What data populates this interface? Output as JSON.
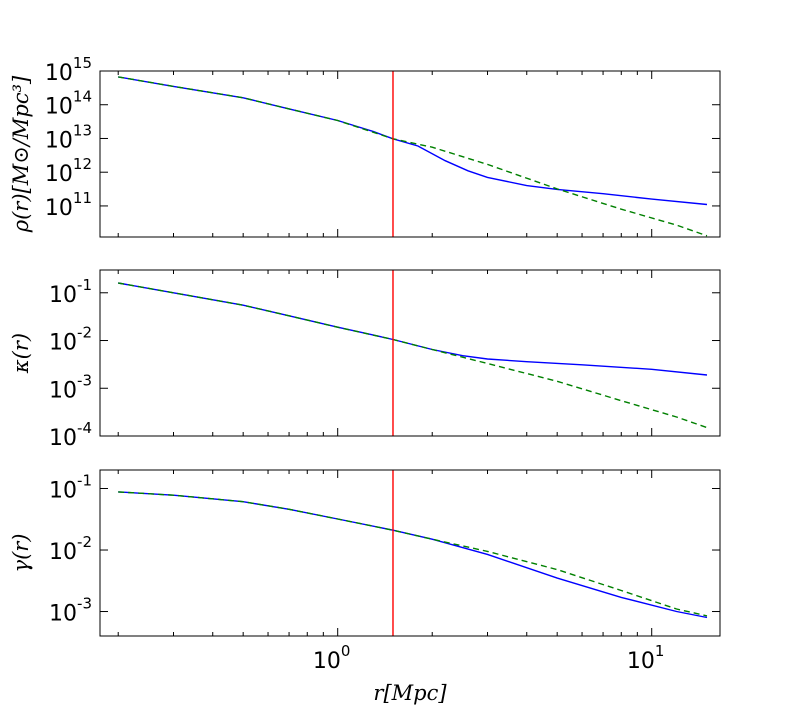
{
  "chart_data": [
    {
      "type": "line",
      "ylabel": "ρ(r)[M⊙/Mpc³]",
      "xscale": "log",
      "yscale": "log",
      "xlim": [
        0.175,
        16.5
      ],
      "ylim": [
        12000000000.0,
        1000000000000000.0
      ],
      "yticks": [
        {
          "base": "10",
          "exp": "15",
          "value": 1000000000000000.0
        },
        {
          "base": "10",
          "exp": "14",
          "value": 100000000000000.0
        },
        {
          "base": "10",
          "exp": "13",
          "value": 10000000000000.0
        },
        {
          "base": "10",
          "exp": "12",
          "value": 1000000000000.0
        },
        {
          "base": "10",
          "exp": "11",
          "value": 100000000000.0
        }
      ],
      "vline_x": 1.5,
      "series": [
        {
          "style": "solid",
          "color": "#0000ff",
          "points": [
            [
              0.2,
              670000000000000.0
            ],
            [
              0.3,
              350000000000000.0
            ],
            [
              0.5,
              160000000000000.0
            ],
            [
              0.7,
              75000000000000.0
            ],
            [
              1.0,
              34000000000000.0
            ],
            [
              1.3,
              16000000000000.0
            ],
            [
              1.5,
              9800000000000.0
            ],
            [
              1.8,
              6000000000000.0
            ],
            [
              2.2,
              2200000000000.0
            ],
            [
              2.6,
              1100000000000.0
            ],
            [
              3.0,
              700000000000.0
            ],
            [
              4.0,
              400000000000.0
            ],
            [
              5.0,
              310000000000.0
            ],
            [
              7.0,
              230000000000.0
            ],
            [
              10.0,
              160000000000.0
            ],
            [
              15.0,
              110000000000.0
            ]
          ]
        },
        {
          "style": "dashed",
          "color": "#008000",
          "points": [
            [
              0.2,
              670000000000000.0
            ],
            [
              0.3,
              350000000000000.0
            ],
            [
              0.5,
              160000000000000.0
            ],
            [
              0.7,
              75000000000000.0
            ],
            [
              1.0,
              34000000000000.0
            ],
            [
              1.5,
              9800000000000.0
            ],
            [
              2.0,
              5500000000000.0
            ],
            [
              3.0,
              1700000000000.0
            ],
            [
              5.0,
              320000000000.0
            ],
            [
              8.0,
              80000000000.0
            ],
            [
              12.0,
              27000000000.0
            ],
            [
              15.0,
              13000000000.0
            ]
          ]
        }
      ]
    },
    {
      "type": "line",
      "ylabel": "κ(r)",
      "xscale": "log",
      "yscale": "log",
      "xlim": [
        0.175,
        16.5
      ],
      "ylim": [
        0.0001,
        0.3
      ],
      "yticks": [
        {
          "base": "10",
          "exp": "-1",
          "value": 0.1
        },
        {
          "base": "10",
          "exp": "-2",
          "value": 0.01
        },
        {
          "base": "10",
          "exp": "-3",
          "value": 0.001
        },
        {
          "base": "10",
          "exp": "-4",
          "value": 0.0001
        }
      ],
      "vline_x": 1.5,
      "series": [
        {
          "style": "solid",
          "color": "#0000ff",
          "points": [
            [
              0.2,
              0.16
            ],
            [
              0.3,
              0.1
            ],
            [
              0.5,
              0.055
            ],
            [
              0.7,
              0.033
            ],
            [
              1.0,
              0.019
            ],
            [
              1.3,
              0.013
            ],
            [
              1.5,
              0.0105
            ],
            [
              2.0,
              0.0065
            ],
            [
              2.5,
              0.0048
            ],
            [
              3.0,
              0.0041
            ],
            [
              4.0,
              0.0036
            ],
            [
              6.0,
              0.0031
            ],
            [
              10.0,
              0.0025
            ],
            [
              15.0,
              0.0019
            ]
          ]
        },
        {
          "style": "dashed",
          "color": "#008000",
          "points": [
            [
              0.2,
              0.16
            ],
            [
              0.3,
              0.1
            ],
            [
              0.5,
              0.055
            ],
            [
              0.7,
              0.033
            ],
            [
              1.0,
              0.019
            ],
            [
              1.5,
              0.0105
            ],
            [
              2.0,
              0.0065
            ],
            [
              3.0,
              0.0033
            ],
            [
              5.0,
              0.0014
            ],
            [
              8.0,
              0.00055
            ],
            [
              12.0,
              0.00025
            ],
            [
              15.0,
              0.00015
            ]
          ]
        }
      ]
    },
    {
      "type": "line",
      "ylabel": "γ(r)",
      "xlabel": "r[Mpc]",
      "xscale": "log",
      "yscale": "log",
      "xlim": [
        0.175,
        16.5
      ],
      "ylim": [
        0.0004,
        0.2
      ],
      "xticks": [
        {
          "base": "10",
          "exp": "0",
          "value": 1
        },
        {
          "base": "10",
          "exp": "1",
          "value": 10
        }
      ],
      "yticks": [
        {
          "base": "10",
          "exp": "-1",
          "value": 0.1
        },
        {
          "base": "10",
          "exp": "-2",
          "value": 0.01
        },
        {
          "base": "10",
          "exp": "-3",
          "value": 0.001
        }
      ],
      "vline_x": 1.5,
      "series": [
        {
          "style": "solid",
          "color": "#0000ff",
          "points": [
            [
              0.2,
              0.088
            ],
            [
              0.3,
              0.078
            ],
            [
              0.5,
              0.061
            ],
            [
              0.7,
              0.046
            ],
            [
              1.0,
              0.032
            ],
            [
              1.5,
              0.021
            ],
            [
              2.0,
              0.015
            ],
            [
              3.0,
              0.0085
            ],
            [
              5.0,
              0.0035
            ],
            [
              8.0,
              0.0017
            ],
            [
              12.0,
              0.001
            ],
            [
              15.0,
              0.0008
            ]
          ]
        },
        {
          "style": "dashed",
          "color": "#008000",
          "points": [
            [
              0.2,
              0.088
            ],
            [
              0.3,
              0.078
            ],
            [
              0.5,
              0.061
            ],
            [
              0.7,
              0.046
            ],
            [
              1.0,
              0.032
            ],
            [
              1.5,
              0.021
            ],
            [
              2.0,
              0.015
            ],
            [
              3.0,
              0.0095
            ],
            [
              5.0,
              0.0048
            ],
            [
              8.0,
              0.0022
            ],
            [
              12.0,
              0.0011
            ],
            [
              15.0,
              0.00085
            ]
          ]
        }
      ]
    }
  ]
}
